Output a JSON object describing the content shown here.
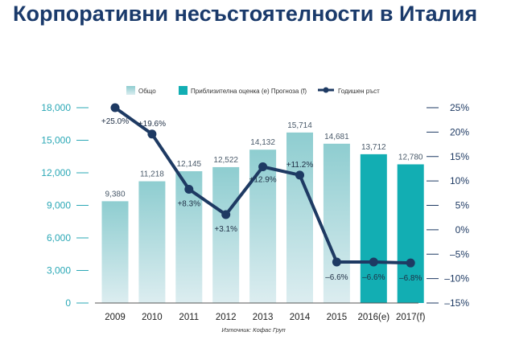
{
  "chart_data": {
    "type": "bar",
    "title": "Корпоративни несъстоятелности в Италия",
    "categories": [
      "2009",
      "2010",
      "2011",
      "2012",
      "2013",
      "2014",
      "2015",
      "2016(e)",
      "2017(f)"
    ],
    "series": [
      {
        "name": "Общо",
        "type": "bar",
        "axis": "left",
        "values": [
          9380,
          11218,
          12145,
          12522,
          14132,
          15714,
          14681,
          null,
          null
        ],
        "labels": [
          "9,380",
          "11,218",
          "12,145",
          "12,522",
          "14,132",
          "15,714",
          "14,681",
          "",
          ""
        ]
      },
      {
        "name": "Приблизителна оценка (e) Прогноза (f)",
        "type": "bar",
        "axis": "left",
        "values": [
          null,
          null,
          null,
          null,
          null,
          null,
          null,
          13712,
          12780
        ],
        "labels": [
          "",
          "",
          "",
          "",
          "",
          "",
          "",
          "13,712",
          "12,780"
        ]
      },
      {
        "name": "Годишен ръст",
        "type": "line",
        "axis": "right",
        "values": [
          25.0,
          19.6,
          8.3,
          3.1,
          12.9,
          11.2,
          -6.6,
          -6.6,
          -6.8
        ],
        "labels": [
          "+25.0%",
          "+19.6%",
          "+8.3%",
          "+3.1%",
          "+12.9%",
          "+11.2%",
          "–6.6%",
          "–6.6%",
          "–6.8%"
        ]
      }
    ],
    "left_axis": {
      "ylim": [
        0,
        18000
      ],
      "ticks": [
        0,
        3000,
        6000,
        9000,
        12000,
        15000,
        18000
      ],
      "tick_labels": [
        "0",
        "3,000",
        "6,000",
        "9,000",
        "12,000",
        "15,000",
        "18,000"
      ]
    },
    "right_axis": {
      "ylim": [
        -15,
        25
      ],
      "ticks": [
        -15,
        -10,
        -5,
        0,
        5,
        10,
        15,
        20,
        25
      ],
      "tick_labels": [
        "–15%",
        "–10%",
        "–5%",
        "0%",
        "5%",
        "10%",
        "15%",
        "20%",
        "25%"
      ]
    },
    "legend_position": "top",
    "grid": false,
    "source": "Източник: Кофас Груп",
    "colors": {
      "title": "#1a3a6b",
      "total_top": "#8ecdd0",
      "total_bottom": "#dcedf0",
      "forecast": "#12aeb3",
      "line": "#1e3a63",
      "axis_left": "#2ba8b6",
      "axis_right": "#1e3a63"
    }
  }
}
